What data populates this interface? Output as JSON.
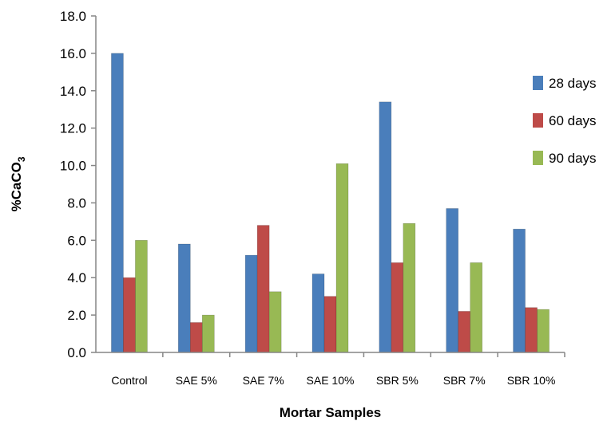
{
  "chart_data": {
    "type": "bar",
    "title": "",
    "xlabel": "Mortar Samples",
    "ylabel": {
      "main": "%CaCO",
      "sub": "3"
    },
    "categories": [
      "Control",
      "SAE 5%",
      "SAE 7%",
      "SAE 10%",
      "SBR 5%",
      "SBR 7%",
      "SBR 10%"
    ],
    "ylim": [
      0,
      18
    ],
    "yticks": [
      "0.0",
      "2.0",
      "4.0",
      "6.0",
      "8.0",
      "10.0",
      "12.0",
      "14.0",
      "16.0",
      "18.0"
    ],
    "grid": false,
    "legend_position": "right",
    "series": [
      {
        "name": "28 days",
        "color": "#4a7ebb",
        "values": [
          16.0,
          5.8,
          5.2,
          4.2,
          13.4,
          7.7,
          6.6
        ]
      },
      {
        "name": "60 days",
        "color": "#be4b48",
        "values": [
          4.0,
          1.6,
          6.8,
          3.0,
          4.8,
          2.2,
          2.4
        ]
      },
      {
        "name": "90 days",
        "color": "#98b954",
        "values": [
          6.0,
          2.0,
          3.25,
          10.1,
          6.9,
          4.8,
          2.3
        ]
      }
    ]
  }
}
